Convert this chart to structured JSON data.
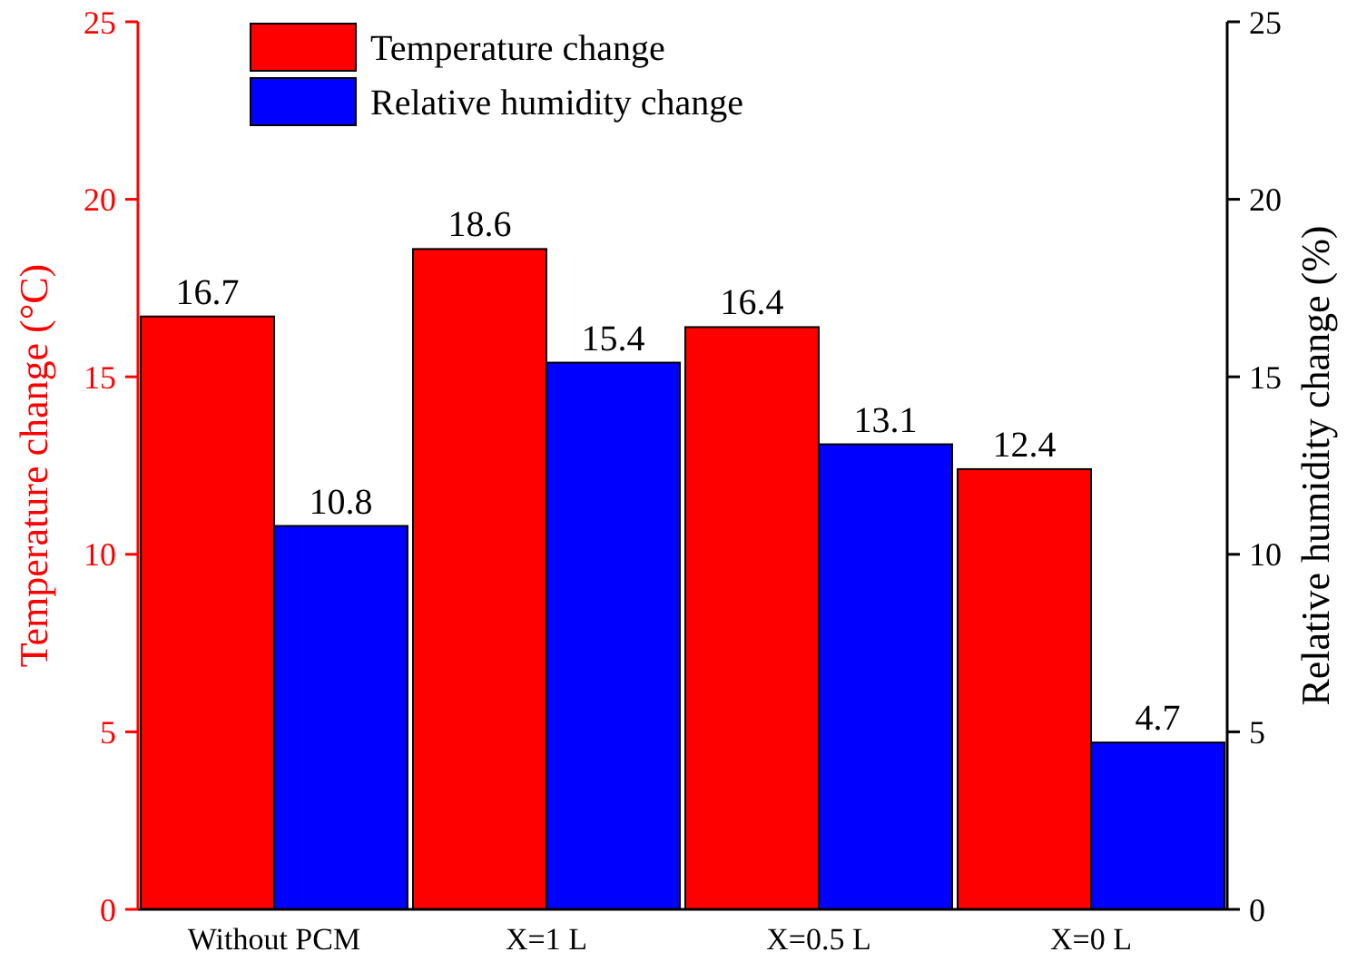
{
  "chart_data": {
    "type": "bar",
    "categories": [
      "Without PCM",
      "X=1 L",
      "X=0.5 L",
      "X=0 L"
    ],
    "series": [
      {
        "name": "Temperature change",
        "color": "#ff0000",
        "values": [
          16.7,
          18.6,
          16.4,
          12.4
        ]
      },
      {
        "name": "Relative humidity change",
        "color": "#0000ff",
        "values": [
          10.8,
          15.4,
          13.1,
          4.7
        ],
        "axis": "y2"
      }
    ],
    "ylabel": "Temperature change (°C)",
    "y2label": "Relative humidity change (%)",
    "ylim": [
      0,
      25
    ],
    "yticks": [
      0,
      5,
      10,
      15,
      20,
      25
    ],
    "y2lim": [
      0,
      25
    ],
    "y2ticks": [
      0,
      5,
      10,
      15,
      20,
      25
    ],
    "data_labels": true,
    "legend": "top left",
    "grid": false
  }
}
